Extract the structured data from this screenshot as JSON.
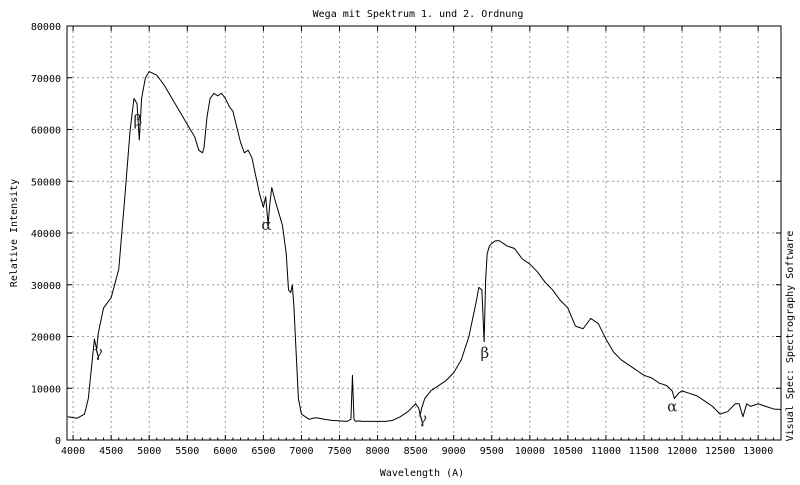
{
  "chart_data": {
    "type": "line",
    "title": "Wega mit Spektrum 1. und 2. Ordnung",
    "xlabel": "Wavelength (A)",
    "ylabel": "Relative Intensity",
    "side_label": "Visual Spec: Spectrography Software",
    "xlim": [
      3920,
      13300
    ],
    "ylim": [
      0,
      80000
    ],
    "grid": true,
    "x_ticks": [
      4000,
      4500,
      5000,
      5500,
      6000,
      6500,
      7000,
      7500,
      8000,
      8500,
      9000,
      9500,
      10000,
      10500,
      11000,
      11500,
      12000,
      12500,
      13000
    ],
    "x_tick_labels": [
      "4000",
      "4500",
      "5000",
      "5500",
      "6000",
      "6500",
      "7000",
      "7500",
      "8000",
      "8500",
      "9000",
      "9500",
      "10000",
      "10500",
      "11000",
      "11500",
      "12000",
      "12500",
      "13000"
    ],
    "y_ticks": [
      0,
      10000,
      20000,
      30000,
      40000,
      50000,
      60000,
      70000,
      80000
    ],
    "y_tick_labels": [
      "0",
      "10000",
      "20000",
      "30000",
      "40000",
      "50000",
      "60000",
      "70000",
      "80000"
    ],
    "series": [
      {
        "color": "#000000",
        "x": [
          3930,
          4050,
          4150,
          4200,
          4280,
          4310,
          4330,
          4350,
          4400,
          4500,
          4600,
          4680,
          4750,
          4800,
          4840,
          4870,
          4900,
          4950,
          5000,
          5100,
          5200,
          5300,
          5400,
          5500,
          5600,
          5650,
          5700,
          5720,
          5760,
          5800,
          5850,
          5900,
          5950,
          6000,
          6050,
          6100,
          6150,
          6200,
          6250,
          6300,
          6350,
          6400,
          6450,
          6500,
          6530,
          6563,
          6580,
          6610,
          6650,
          6700,
          6750,
          6800,
          6830,
          6860,
          6880,
          6900,
          6930,
          6960,
          7000,
          7050,
          7100,
          7150,
          7200,
          7300,
          7400,
          7500,
          7600,
          7650,
          7670,
          7690,
          7710,
          7750,
          7800,
          7900,
          8000,
          8100,
          8200,
          8300,
          8400,
          8500,
          8540,
          8560,
          8580,
          8620,
          8700,
          8800,
          8900,
          9000,
          9100,
          9200,
          9300,
          9330,
          9370,
          9400,
          9420,
          9440,
          9470,
          9500,
          9550,
          9600,
          9700,
          9800,
          9900,
          10000,
          10100,
          10200,
          10300,
          10400,
          10500,
          10600,
          10700,
          10800,
          10900,
          11000,
          11100,
          11200,
          11300,
          11400,
          11500,
          11600,
          11700,
          11800,
          11870,
          11900,
          11950,
          12000,
          12100,
          12200,
          12300,
          12400,
          12500,
          12600,
          12700,
          12750,
          12800,
          12850,
          12900,
          13000,
          13100,
          13200,
          13300
        ],
        "y": [
          4500,
          4200,
          5000,
          8000,
          19500,
          17500,
          20500,
          22000,
          25500,
          27500,
          33000,
          47000,
          60000,
          66000,
          65000,
          58000,
          66000,
          70000,
          71200,
          70500,
          68500,
          66000,
          63500,
          61000,
          58500,
          56000,
          55500,
          56500,
          62500,
          66000,
          67000,
          66500,
          67000,
          66000,
          64500,
          63500,
          60500,
          57500,
          55500,
          56000,
          54500,
          51000,
          47500,
          45000,
          47000,
          41500,
          45000,
          48800,
          46500,
          44000,
          41500,
          36000,
          29000,
          28500,
          30000,
          26000,
          17000,
          8000,
          5000,
          4500,
          4000,
          4200,
          4300,
          4000,
          3800,
          3700,
          3600,
          4000,
          12500,
          4000,
          3600,
          3700,
          3600,
          3600,
          3600,
          3600,
          3800,
          4500,
          5500,
          7000,
          6200,
          4800,
          6200,
          8000,
          9500,
          10500,
          11500,
          13000,
          15500,
          20000,
          27000,
          29500,
          29000,
          19000,
          31000,
          36000,
          37500,
          38000,
          38500,
          38500,
          37500,
          37000,
          35000,
          34000,
          32500,
          30500,
          29000,
          27000,
          25500,
          22000,
          21500,
          23500,
          22500,
          19500,
          17000,
          15500,
          14500,
          13500,
          12500,
          12000,
          11000,
          10500,
          9500,
          8000,
          9000,
          9500,
          9000,
          8500,
          7500,
          6500,
          5000,
          5500,
          7000,
          7000,
          4500,
          7000,
          6500,
          7000,
          6500,
          6000,
          5900
        ]
      }
    ],
    "annotations": [
      {
        "text": "γ",
        "x": 4330,
        "y": 16000
      },
      {
        "text": "β",
        "x": 4850,
        "y": 60800
      },
      {
        "text": "α",
        "x": 6540,
        "y": 40600
      },
      {
        "text": "γ",
        "x": 8590,
        "y": 3200
      },
      {
        "text": "β",
        "x": 9410,
        "y": 15800
      },
      {
        "text": "α",
        "x": 11870,
        "y": 5500
      }
    ]
  }
}
